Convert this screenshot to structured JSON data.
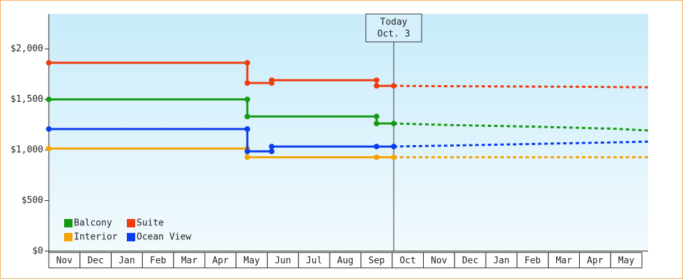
{
  "chart_data": {
    "type": "line",
    "xlim": [
      0,
      19.2
    ],
    "xticks": [
      {
        "value": 0,
        "label": "Nov"
      },
      {
        "value": 1,
        "label": "Dec"
      },
      {
        "value": 2,
        "label": "Jan"
      },
      {
        "value": 3,
        "label": "Feb"
      },
      {
        "value": 4,
        "label": "Mar"
      },
      {
        "value": 5,
        "label": "Apr"
      },
      {
        "value": 6,
        "label": "May"
      },
      {
        "value": 7,
        "label": "Jun"
      },
      {
        "value": 8,
        "label": "Jul"
      },
      {
        "value": 9,
        "label": "Aug"
      },
      {
        "value": 10,
        "label": "Sep"
      },
      {
        "value": 11,
        "label": "Oct"
      },
      {
        "value": 12,
        "label": "Nov"
      },
      {
        "value": 13,
        "label": "Dec"
      },
      {
        "value": 14,
        "label": "Jan"
      },
      {
        "value": 15,
        "label": "Feb"
      },
      {
        "value": 16,
        "label": "Mar"
      },
      {
        "value": 17,
        "label": "Apr"
      },
      {
        "value": 18,
        "label": "May"
      }
    ],
    "ylim": [
      0,
      2345
    ],
    "yticks": [
      {
        "value": 0,
        "label": "$0"
      },
      {
        "value": 500,
        "label": "$500"
      },
      {
        "value": 1000,
        "label": "$1,000"
      },
      {
        "value": 1500,
        "label": "$1,500"
      },
      {
        "value": 2000,
        "label": "$2,000"
      }
    ],
    "today": {
      "x": 11.05,
      "lines": [
        "Today",
        "Oct. 3"
      ]
    },
    "series": [
      {
        "name": "Balcony",
        "color": "#149a14",
        "x": [
          0,
          6.36,
          6.36,
          10.5,
          10.5,
          11.05
        ],
        "values": [
          1500,
          1500,
          1331,
          1331,
          1262,
          1262
        ],
        "forecast_x": [
          11.05,
          13.1,
          15.6,
          18.1,
          19.2
        ],
        "forecast_values": [
          1262,
          1245,
          1230,
          1210,
          1193
        ]
      },
      {
        "name": "Suite",
        "color": "#f03c0c",
        "x": [
          0,
          6.36,
          6.36,
          7.14,
          7.14,
          10.5,
          10.5,
          11.05
        ],
        "values": [
          1862,
          1862,
          1662,
          1662,
          1690,
          1690,
          1634,
          1634
        ],
        "forecast_x": [
          11.05,
          13.1,
          17.0,
          19.2
        ],
        "forecast_values": [
          1634,
          1630,
          1625,
          1620
        ]
      },
      {
        "name": "Interior",
        "color": "#f5a300",
        "x": [
          0,
          6.36,
          6.36,
          10.5,
          11.05
        ],
        "values": [
          1014,
          1014,
          928,
          928,
          928
        ],
        "forecast_x": [
          11.05,
          19.2
        ],
        "forecast_values": [
          928,
          928
        ]
      },
      {
        "name": "Ocean View",
        "color": "#0a3cf0",
        "x": [
          0,
          6.36,
          6.36,
          7.14,
          7.14,
          10.5,
          11.05
        ],
        "values": [
          1207,
          1207,
          986,
          986,
          1034,
          1034,
          1034
        ],
        "forecast_x": [
          11.05,
          13.1,
          15.6,
          18.1,
          19.2
        ],
        "forecast_values": [
          1034,
          1045,
          1060,
          1075,
          1083
        ]
      }
    ]
  }
}
